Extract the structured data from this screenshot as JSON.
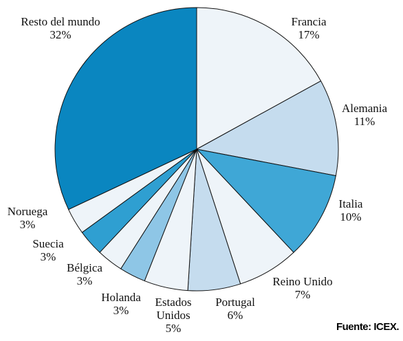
{
  "chart_data": {
    "type": "pie",
    "categories": [
      "Francia",
      "Alemania",
      "Italia",
      "Reino Unido",
      "Portugal",
      "Estados Unidos",
      "Holanda",
      "Bélgica",
      "Suecia",
      "Noruega",
      "Resto del mundo"
    ],
    "values": [
      17,
      11,
      10,
      7,
      6,
      5,
      3,
      3,
      3,
      3,
      32
    ],
    "value_labels": [
      "17%",
      "11%",
      "10%",
      "7%",
      "6%",
      "5%",
      "3%",
      "3%",
      "3%",
      "3%",
      "32%"
    ],
    "colors": [
      "#eef4f9",
      "#c5dcee",
      "#3fa7d6",
      "#eef4f9",
      "#c5dcee",
      "#eef4f9",
      "#8ec6e6",
      "#eef4f9",
      "#2f9fd1",
      "#eef4f9",
      "#0a86c0"
    ],
    "source": "Fuente: ICEX."
  }
}
